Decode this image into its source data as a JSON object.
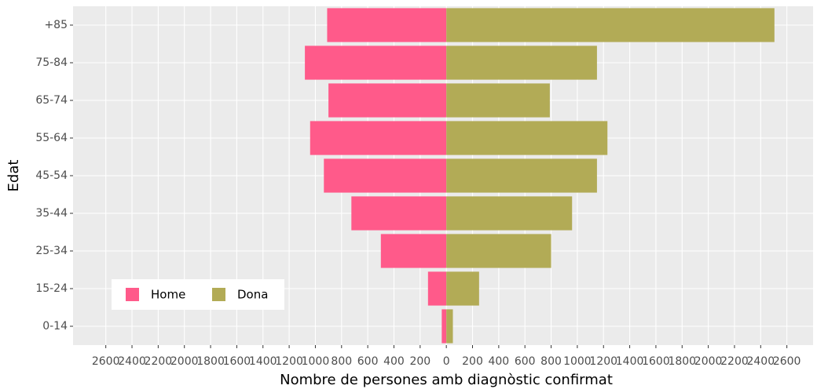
{
  "chart_data": {
    "type": "bar",
    "orientation": "horizontal",
    "stacked": false,
    "xlabel": "Nombre de persones amb diagnòstic confirmat",
    "ylabel": "Edat",
    "categories": [
      "0-14",
      "15-24",
      "25-34",
      "35-44",
      "45-54",
      "55-64",
      "65-74",
      "75-84",
      "+85"
    ],
    "series": [
      {
        "name": "Home",
        "color": "#ff5a8a",
        "values": [
          -35,
          -140,
          -500,
          -725,
          -935,
          -1040,
          -900,
          -1080,
          -910
        ]
      },
      {
        "name": "Dona",
        "color": "#b2ab56",
        "values": [
          50,
          250,
          800,
          960,
          1150,
          1230,
          790,
          1150,
          2505
        ]
      }
    ],
    "xlim": [
      -2850,
      2800
    ],
    "xticks": [
      {
        "value": -2600,
        "label": "2600"
      },
      {
        "value": -2400,
        "label": "2400"
      },
      {
        "value": -2200,
        "label": "2200"
      },
      {
        "value": -2000,
        "label": "2000"
      },
      {
        "value": -1800,
        "label": "1800"
      },
      {
        "value": -1600,
        "label": "1600"
      },
      {
        "value": -1400,
        "label": "1400"
      },
      {
        "value": -1200,
        "label": "1200"
      },
      {
        "value": -1000,
        "label": "1000"
      },
      {
        "value": -800,
        "label": "800"
      },
      {
        "value": -600,
        "label": "600"
      },
      {
        "value": -400,
        "label": "400"
      },
      {
        "value": -200,
        "label": "200"
      },
      0,
      200,
      400,
      600,
      800,
      1000,
      1200,
      1400,
      1600,
      1800,
      2000,
      2200,
      2400,
      2600
    ],
    "grid": true,
    "legend": "bottom-left"
  }
}
